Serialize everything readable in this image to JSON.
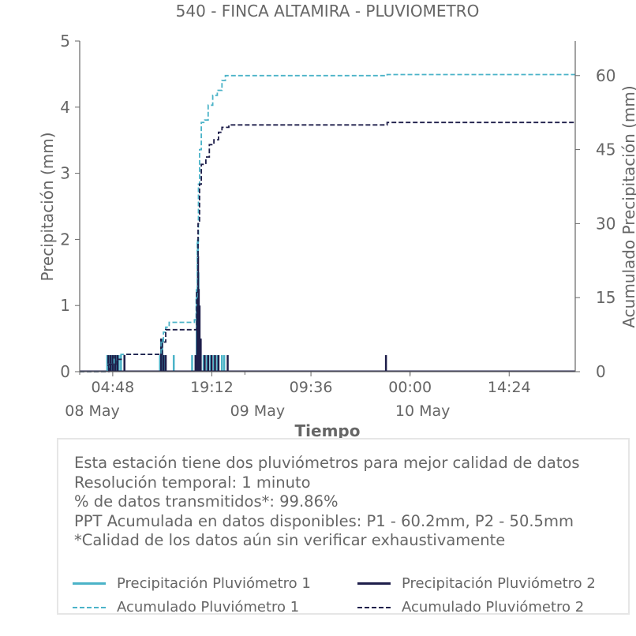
{
  "chart_data": {
    "type": "line",
    "title": "540 - FINCA ALTAMIRA - PLUVIOMETRO",
    "xlabel": "Tiempo",
    "ylabel_left": "Precipitación (mm)",
    "ylabel_right": "Acumulado Precipitación (mm)",
    "x_range": [
      "2024-05-08 00:00",
      "2024-05-11 00:00"
    ],
    "ylim_left": [
      0,
      5
    ],
    "ylim_right": [
      0,
      67
    ],
    "yticks_left": [
      0,
      1,
      2,
      3,
      4,
      5
    ],
    "yticks_right": [
      0,
      15,
      30,
      45,
      60
    ],
    "xticks": [
      {
        "label": "04:48",
        "sublabel": "",
        "t": "2024-05-08 04:48"
      },
      {
        "label": "19:12",
        "sublabel": "",
        "t": "2024-05-08 19:12"
      },
      {
        "label": "09:36",
        "sublabel": "",
        "t": "2024-05-09 09:36"
      },
      {
        "label": "00:00",
        "sublabel": "",
        "t": "2024-05-10 00:00"
      },
      {
        "label": "14:24",
        "sublabel": "",
        "t": "2024-05-10 14:24"
      }
    ],
    "date_labels": [
      {
        "label": "08 May",
        "t": "2024-05-08 00:00"
      },
      {
        "label": "09 May",
        "t": "2024-05-09 00:00"
      },
      {
        "label": "10 May",
        "t": "2024-05-10 00:00"
      }
    ],
    "series": [
      {
        "name": "Precipitación Pluviómetro 1",
        "axis": "left",
        "style": "solid",
        "color": "#4bb3c8",
        "kind": "bars",
        "points": [
          [
            "2024-05-08 04:00",
            0.25
          ],
          [
            "2024-05-08 04:20",
            0.25
          ],
          [
            "2024-05-08 04:40",
            0.25
          ],
          [
            "2024-05-08 05:00",
            0.25
          ],
          [
            "2024-05-08 05:20",
            0.25
          ],
          [
            "2024-05-08 05:40",
            0.25
          ],
          [
            "2024-05-08 06:00",
            0.25
          ],
          [
            "2024-05-08 11:40",
            0.25
          ],
          [
            "2024-05-08 12:00",
            0.5
          ],
          [
            "2024-05-08 12:20",
            0.25
          ],
          [
            "2024-05-08 13:40",
            0.25
          ],
          [
            "2024-05-08 16:20",
            0.25
          ],
          [
            "2024-05-08 17:00",
            1.25
          ],
          [
            "2024-05-08 17:10",
            2.0
          ],
          [
            "2024-05-08 17:15",
            1.5
          ],
          [
            "2024-05-08 17:20",
            1.0
          ],
          [
            "2024-05-08 17:30",
            0.5
          ],
          [
            "2024-05-08 18:00",
            0.25
          ],
          [
            "2024-05-08 18:30",
            0.25
          ],
          [
            "2024-05-08 19:00",
            0.25
          ],
          [
            "2024-05-08 19:30",
            0.25
          ],
          [
            "2024-05-08 20:00",
            0.25
          ],
          [
            "2024-05-08 20:40",
            0.25
          ],
          [
            "2024-05-08 21:00",
            0.25
          ]
        ]
      },
      {
        "name": "Precipitación Pluviómetro 2",
        "axis": "left",
        "style": "solid",
        "color": "#1e1e4a",
        "kind": "bars",
        "points": [
          [
            "2024-05-08 04:10",
            0.25
          ],
          [
            "2024-05-08 04:30",
            0.25
          ],
          [
            "2024-05-08 04:50",
            0.25
          ],
          [
            "2024-05-08 05:10",
            0.25
          ],
          [
            "2024-05-08 05:30",
            0.25
          ],
          [
            "2024-05-08 06:30",
            0.25
          ],
          [
            "2024-05-08 11:50",
            0.5
          ],
          [
            "2024-05-08 12:10",
            0.25
          ],
          [
            "2024-05-08 12:30",
            0.25
          ],
          [
            "2024-05-08 16:50",
            0.25
          ],
          [
            "2024-05-08 17:05",
            1.0
          ],
          [
            "2024-05-08 17:12",
            1.75
          ],
          [
            "2024-05-08 17:18",
            1.25
          ],
          [
            "2024-05-08 17:25",
            1.0
          ],
          [
            "2024-05-08 17:35",
            0.5
          ],
          [
            "2024-05-08 18:10",
            0.25
          ],
          [
            "2024-05-08 18:40",
            0.25
          ],
          [
            "2024-05-08 19:10",
            0.25
          ],
          [
            "2024-05-08 19:40",
            0.25
          ],
          [
            "2024-05-08 20:10",
            0.25
          ],
          [
            "2024-05-08 21:30",
            0.25
          ],
          [
            "2024-05-09 20:30",
            0.25
          ]
        ]
      },
      {
        "name": "Acumulado Pluviómetro 1",
        "axis": "right",
        "style": "dashed",
        "color": "#4bb3c8",
        "kind": "line",
        "points": [
          [
            "2024-05-08 00:00",
            0
          ],
          [
            "2024-05-08 03:50",
            0
          ],
          [
            "2024-05-08 04:00",
            1.5
          ],
          [
            "2024-05-08 05:00",
            2.5
          ],
          [
            "2024-05-08 06:00",
            3.5
          ],
          [
            "2024-05-08 11:30",
            3.5
          ],
          [
            "2024-05-08 11:50",
            6.0
          ],
          [
            "2024-05-08 12:10",
            8.0
          ],
          [
            "2024-05-08 12:30",
            9.0
          ],
          [
            "2024-05-08 13:00",
            10.0
          ],
          [
            "2024-05-08 16:40",
            10.5
          ],
          [
            "2024-05-08 16:55",
            15.0
          ],
          [
            "2024-05-08 17:05",
            26.0
          ],
          [
            "2024-05-08 17:15",
            38.0
          ],
          [
            "2024-05-08 17:25",
            45.0
          ],
          [
            "2024-05-08 17:40",
            50.5
          ],
          [
            "2024-05-08 18:10",
            51.0
          ],
          [
            "2024-05-08 18:40",
            54.0
          ],
          [
            "2024-05-08 19:20",
            56.0
          ],
          [
            "2024-05-08 20:00",
            57.0
          ],
          [
            "2024-05-08 20:40",
            59.0
          ],
          [
            "2024-05-08 21:10",
            60.0
          ],
          [
            "2024-05-09 20:20",
            60.0
          ],
          [
            "2024-05-09 20:40",
            60.2
          ],
          [
            "2024-05-11 00:00",
            60.2
          ]
        ]
      },
      {
        "name": "Acumulado Pluviómetro 2",
        "axis": "right",
        "style": "dashed",
        "color": "#1e1e4a",
        "kind": "line",
        "points": [
          [
            "2024-05-08 00:00",
            0
          ],
          [
            "2024-05-08 04:00",
            0
          ],
          [
            "2024-05-08 04:15",
            1.5
          ],
          [
            "2024-05-08 05:15",
            2.5
          ],
          [
            "2024-05-08 06:30",
            3.5
          ],
          [
            "2024-05-08 11:40",
            3.5
          ],
          [
            "2024-05-08 12:00",
            6.0
          ],
          [
            "2024-05-08 12:30",
            8.5
          ],
          [
            "2024-05-08 16:45",
            8.5
          ],
          [
            "2024-05-08 17:00",
            16.0
          ],
          [
            "2024-05-08 17:12",
            30.0
          ],
          [
            "2024-05-08 17:25",
            38.0
          ],
          [
            "2024-05-08 17:40",
            42.0
          ],
          [
            "2024-05-08 18:20",
            43.5
          ],
          [
            "2024-05-08 18:50",
            46.0
          ],
          [
            "2024-05-08 19:30",
            47.0
          ],
          [
            "2024-05-08 20:10",
            48.5
          ],
          [
            "2024-05-08 20:40",
            49.5
          ],
          [
            "2024-05-08 21:40",
            50.0
          ],
          [
            "2024-05-09 20:20",
            50.0
          ],
          [
            "2024-05-09 20:40",
            50.5
          ],
          [
            "2024-05-11 00:00",
            50.5
          ]
        ]
      }
    ]
  },
  "info": {
    "lines": [
      "Esta estación tiene dos pluviómetros para mejor calidad de datos",
      "Resolución temporal: 1 minuto",
      "% de datos transmitidos*: 99.86%",
      "PPT Acumulada en datos disponibles: P1 - 60.2mm, P2 - 50.5mm",
      "*Calidad de los datos aún sin verificar exhaustivamente"
    ]
  },
  "legend": [
    {
      "label": "Precipitación Pluviómetro 1",
      "color": "#4bb3c8",
      "style": "solid"
    },
    {
      "label": "Precipitación Pluviómetro 2",
      "color": "#1e1e4a",
      "style": "solid"
    },
    {
      "label": "Acumulado Pluviómetro 1",
      "color": "#4bb3c8",
      "style": "dashed"
    },
    {
      "label": "Acumulado Pluviómetro 2",
      "color": "#1e1e4a",
      "style": "dashed"
    }
  ]
}
